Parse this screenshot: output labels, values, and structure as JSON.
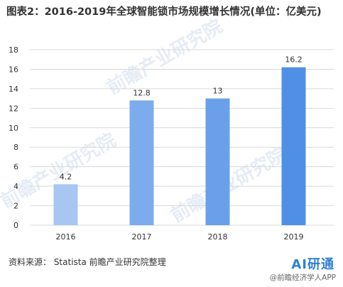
{
  "title": "图表2：2016-2019年全球智能锁市场规模增长情况(单位：亿美元)",
  "source_text": "资料来源： Statista 前瞻产业研究院整理",
  "brand": {
    "logo_text": "AI研通",
    "caption": "@前瞻经济学人APP"
  },
  "watermark_text": "前瞻产业研究院",
  "colors": {
    "bar_gradient": [
      "#a7c6f2",
      "#7cacee",
      "#6aa0ea",
      "#4f8fe6"
    ],
    "grid": "#d9d9d9",
    "axis_text": "#333333"
  },
  "chart_data": {
    "type": "bar",
    "title": "图表2：2016-2019年全球智能锁市场规模增长情况(单位：亿美元)",
    "xlabel": "",
    "ylabel": "",
    "categories": [
      "2016",
      "2017",
      "2018",
      "2019"
    ],
    "values": [
      4.2,
      12.8,
      13,
      16.2
    ],
    "value_labels": [
      "4.2",
      "12.8",
      "13",
      "16.2"
    ],
    "ylim": [
      0,
      18
    ],
    "yticks": [
      0,
      2,
      4,
      6,
      8,
      10,
      12,
      14,
      16,
      18
    ],
    "grid": true,
    "legend": "none"
  }
}
